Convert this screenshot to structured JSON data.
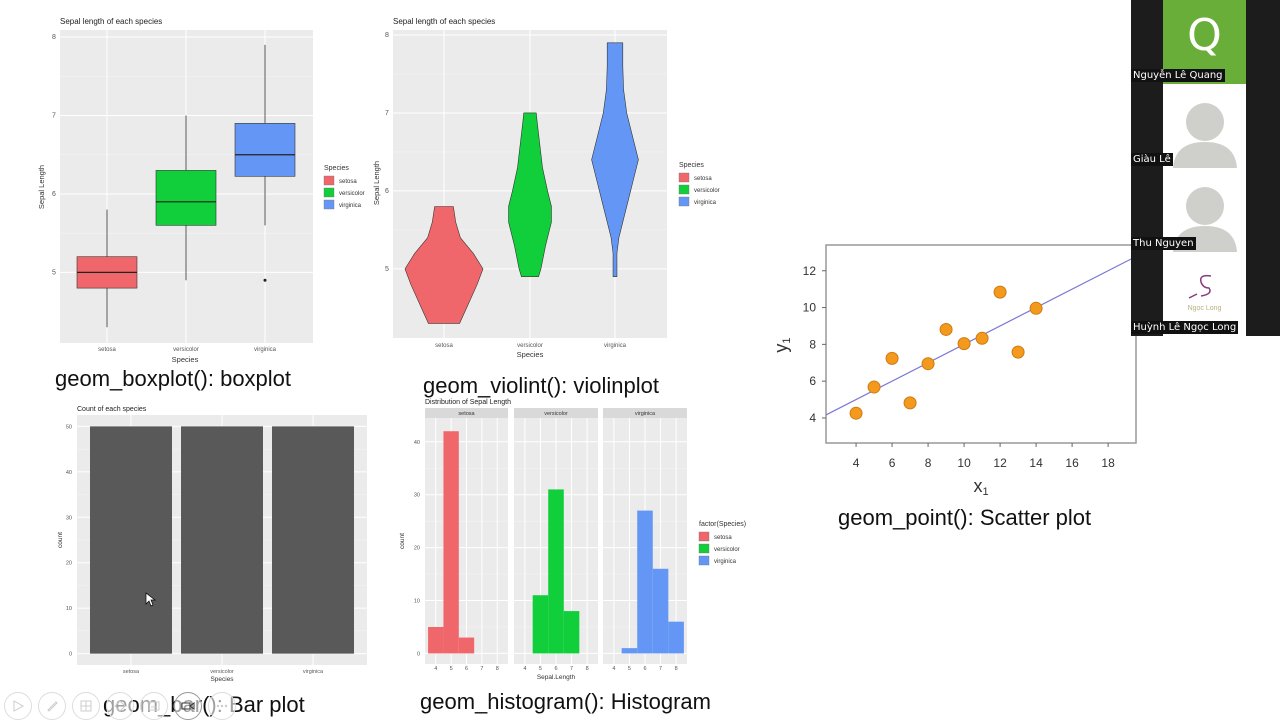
{
  "captions": {
    "boxplot": "geom_boxplot(): boxplot",
    "violin": "geom_violint(): violinplot",
    "bar": "geom_bar(): Bar plot",
    "histogram": "geom_histogram(): Histogram",
    "scatter": "geom_point(): Scatter plot"
  },
  "colors": {
    "setosa": "#F0676B",
    "versicolor": "#10CF3A",
    "virginica": "#6497F5",
    "bar": "#595959",
    "point": "#F39A1E",
    "line": "#7A78D6",
    "panel": "#EBEBEB"
  },
  "participants": [
    {
      "name": "Nguyễn Lê Quang",
      "initial": "Q",
      "tile_color": "#6AAE3A"
    },
    {
      "name": "Giàu Lê",
      "avatar": "person-icon"
    },
    {
      "name": "Thu Nguyen",
      "avatar": "person-icon"
    },
    {
      "name": "Huỳnh Lê Ngọc Long",
      "logo_text": "Ngọc Long"
    }
  ],
  "toolbar": [
    "arrow-icon",
    "pen-icon",
    "grid-icon",
    "eraser-icon",
    "subtitle-icon",
    "camera-icon",
    "more-icon"
  ],
  "chart_data": [
    {
      "type": "boxplot",
      "title": "Sepal length of each species",
      "xlabel": "Species",
      "ylabel": "Sepal Length",
      "categories": [
        "setosa",
        "versicolor",
        "virginica"
      ],
      "yticks": [
        5,
        6,
        7,
        8
      ],
      "ylim": [
        4.1,
        8.09
      ],
      "legend": {
        "title": "Species",
        "position": "right",
        "entries": [
          "setosa",
          "versicolor",
          "virginica"
        ]
      },
      "boxes": [
        {
          "min": 4.3,
          "q1": 4.8,
          "median": 5.0,
          "q3": 5.2,
          "max": 5.8,
          "outliers": []
        },
        {
          "min": 4.9,
          "q1": 5.6,
          "median": 5.9,
          "q3": 6.3,
          "max": 7.0,
          "outliers": []
        },
        {
          "min": 5.6,
          "q1": 6.225,
          "median": 6.5,
          "q3": 6.9,
          "max": 7.9,
          "outliers": [
            4.9
          ]
        }
      ]
    },
    {
      "type": "violin",
      "title": "Sepal length of each species",
      "xlabel": "Species",
      "ylabel": "Sepal Length",
      "categories": [
        "setosa",
        "versicolor",
        "virginica"
      ],
      "yticks": [
        5,
        6,
        7,
        8
      ],
      "ylim": [
        4.1,
        8.09
      ],
      "legend": {
        "title": "Species",
        "position": "right",
        "entries": [
          "setosa",
          "versicolor",
          "virginica"
        ]
      },
      "density": [
        [
          [
            4.3,
            0.4
          ],
          [
            4.5,
            0.58
          ],
          [
            4.8,
            0.85
          ],
          [
            5.0,
            1.0
          ],
          [
            5.2,
            0.75
          ],
          [
            5.4,
            0.42
          ],
          [
            5.6,
            0.3
          ],
          [
            5.8,
            0.24
          ]
        ],
        [
          [
            4.9,
            0.22
          ],
          [
            5.0,
            0.28
          ],
          [
            5.3,
            0.4
          ],
          [
            5.6,
            0.55
          ],
          [
            5.8,
            0.55
          ],
          [
            6.0,
            0.45
          ],
          [
            6.3,
            0.32
          ],
          [
            6.6,
            0.25
          ],
          [
            6.9,
            0.18
          ],
          [
            7.0,
            0.16
          ]
        ],
        [
          [
            4.9,
            0.05
          ],
          [
            5.2,
            0.05
          ],
          [
            5.4,
            0.1
          ],
          [
            5.8,
            0.3
          ],
          [
            6.1,
            0.45
          ],
          [
            6.4,
            0.6
          ],
          [
            6.7,
            0.45
          ],
          [
            7.0,
            0.3
          ],
          [
            7.3,
            0.22
          ],
          [
            7.6,
            0.2
          ],
          [
            7.9,
            0.2
          ]
        ]
      ]
    },
    {
      "type": "bar",
      "title": "Count of each species",
      "xlabel": "Species",
      "ylabel": "count",
      "categories": [
        "setosa",
        "versicolor",
        "virginica"
      ],
      "values": [
        50,
        50,
        50
      ],
      "yticks": [
        0,
        10,
        20,
        30,
        40,
        50
      ],
      "ylim": [
        -2.5,
        52.5
      ]
    },
    {
      "type": "histogram",
      "title": "Distribution of Sepal Length",
      "xlabel": "Sepal.Length",
      "ylabel": "count",
      "facets": [
        "setosa",
        "versicolor",
        "virginica"
      ],
      "xticks": [
        4,
        5,
        6,
        7,
        8
      ],
      "yticks": [
        0,
        10,
        20,
        30,
        40
      ],
      "xlim": [
        3.3,
        8.7
      ],
      "ylim": [
        -2,
        44.5
      ],
      "bin_width": 1,
      "bins": [
        [
          {
            "center": 4,
            "count": 5
          },
          {
            "center": 5,
            "count": 42
          },
          {
            "center": 6,
            "count": 3
          }
        ],
        [
          {
            "center": 5,
            "count": 11
          },
          {
            "center": 6,
            "count": 31
          },
          {
            "center": 7,
            "count": 8
          }
        ],
        [
          {
            "center": 5,
            "count": 1
          },
          {
            "center": 6,
            "count": 27
          },
          {
            "center": 7,
            "count": 16
          },
          {
            "center": 8,
            "count": 6
          }
        ]
      ],
      "legend": {
        "title": "factor(Species)",
        "position": "right",
        "entries": [
          "setosa",
          "versicolor",
          "virginica"
        ]
      }
    },
    {
      "type": "scatter",
      "xlabel": "x1",
      "ylabel": "y1",
      "xticks": [
        4,
        6,
        8,
        10,
        12,
        14,
        16,
        18
      ],
      "yticks": [
        4,
        6,
        8,
        10,
        12
      ],
      "xlim": [
        2.33,
        19.55
      ],
      "ylim": [
        2.64,
        13.4
      ],
      "x": [
        10,
        8,
        13,
        9,
        11,
        14,
        6,
        4,
        12,
        7,
        5
      ],
      "y": [
        8.04,
        6.95,
        7.58,
        8.81,
        8.33,
        9.96,
        7.24,
        4.26,
        10.84,
        4.82,
        5.68
      ],
      "fit_line": {
        "intercept": 3.0,
        "slope": 0.5
      }
    }
  ]
}
